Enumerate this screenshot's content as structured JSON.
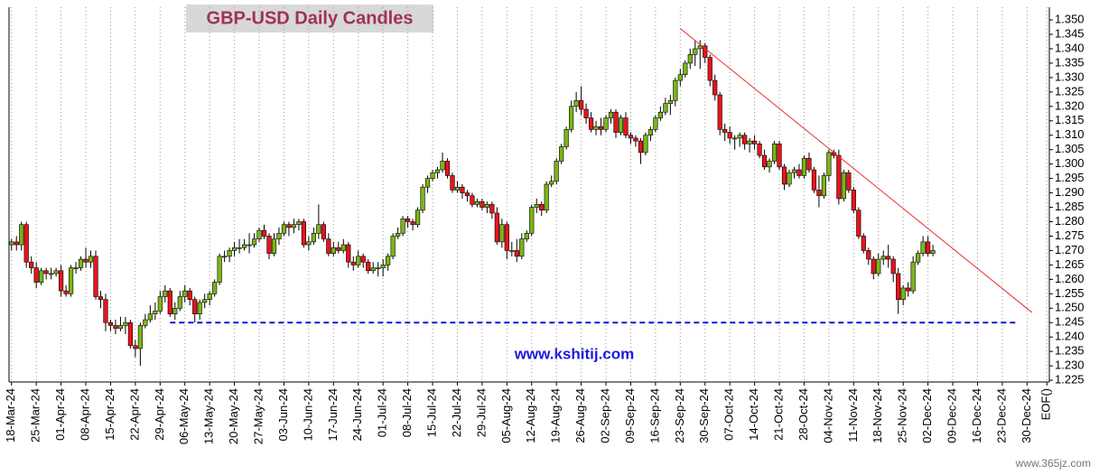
{
  "chart_data": {
    "type": "candlestick",
    "title": "GBP-USD Daily Candles",
    "annotation": "www.kshitij.com",
    "watermark": "www.365jz.com",
    "up_color": "#7cb518",
    "down_color": "#e8141c",
    "grid": "x",
    "ylim": [
      1.2244,
      1.3544
    ],
    "yticks": [
      1.225,
      {
        "value": 1.23,
        "label": "1.230"
      },
      1.235,
      {
        "value": 1.24,
        "label": "1.240"
      },
      1.245,
      {
        "value": 1.25,
        "label": "1.250"
      },
      1.255,
      {
        "value": 1.26,
        "label": "1.260"
      },
      1.265,
      {
        "value": 1.27,
        "label": "1.270"
      },
      1.275,
      {
        "value": 1.28,
        "label": "1.280"
      },
      1.285,
      {
        "value": 1.29,
        "label": "1.290"
      },
      1.295,
      {
        "value": 1.3,
        "label": "1.300"
      },
      1.305,
      {
        "value": 1.31,
        "label": "1.310"
      },
      1.315,
      {
        "value": 1.32,
        "label": "1.320"
      },
      1.325,
      {
        "value": 1.33,
        "label": "1.330"
      },
      1.335,
      {
        "value": 1.34,
        "label": "1.340"
      },
      1.345,
      {
        "value": 1.35,
        "label": "1.350"
      }
    ],
    "categories": [
      "18-Mar-24",
      null,
      null,
      null,
      null,
      "25-Mar-24",
      null,
      null,
      null,
      null,
      "01-Apr-24",
      null,
      null,
      null,
      null,
      "08-Apr-24",
      null,
      null,
      null,
      null,
      "15-Apr-24",
      null,
      null,
      null,
      null,
      "22-Apr-24",
      null,
      null,
      null,
      null,
      "29-Apr-24",
      null,
      null,
      null,
      null,
      "06-May-24",
      null,
      null,
      null,
      null,
      "13-May-24",
      null,
      null,
      null,
      null,
      "20-May-24",
      null,
      null,
      null,
      null,
      "27-May-24",
      null,
      null,
      null,
      null,
      "03-Jun-24",
      null,
      null,
      null,
      null,
      "10-Jun-24",
      null,
      null,
      null,
      null,
      "17-Jun-24",
      null,
      null,
      null,
      null,
      "24-Jun-24",
      null,
      null,
      null,
      null,
      "01-Jul-24",
      null,
      null,
      null,
      null,
      "08-Jul-24",
      null,
      null,
      null,
      null,
      "15-Jul-24",
      null,
      null,
      null,
      null,
      "22-Jul-24",
      null,
      null,
      null,
      null,
      "29-Jul-24",
      null,
      null,
      null,
      null,
      "05-Aug-24",
      null,
      null,
      null,
      null,
      "12-Aug-24",
      null,
      null,
      null,
      null,
      "19-Aug-24",
      null,
      null,
      null,
      null,
      "26-Aug-24",
      null,
      null,
      null,
      null,
      "02-Sep-24",
      null,
      null,
      null,
      null,
      "09-Sep-24",
      null,
      null,
      null,
      null,
      "16-Sep-24",
      null,
      null,
      null,
      null,
      "23-Sep-24",
      null,
      null,
      null,
      null,
      "30-Sep-24",
      null,
      null,
      null,
      null,
      "07-Oct-24",
      null,
      null,
      null,
      null,
      "14-Oct-24",
      null,
      null,
      null,
      null,
      "21-Oct-24",
      null,
      null,
      null,
      null,
      "28-Oct-24",
      null,
      null,
      null,
      null,
      "04-Nov-24",
      null,
      null,
      null,
      null,
      "11-Nov-24",
      null,
      null,
      null,
      null,
      "18-Nov-24",
      null,
      null,
      null,
      null,
      "25-Nov-24",
      null,
      null,
      null,
      null,
      "02-Dec-24",
      null,
      null,
      null,
      null,
      "09-Dec-24",
      null,
      null,
      null,
      null,
      "16-Dec-24",
      null,
      null,
      null,
      null,
      "23-Dec-24",
      null,
      null,
      null,
      null,
      "30-Dec-24",
      null,
      null,
      null,
      "EOF()"
    ],
    "candles": [
      [
        1.272,
        1.274,
        1.27,
        1.273
      ],
      [
        1.273,
        1.275,
        1.27,
        1.272
      ],
      [
        1.272,
        1.28,
        1.27,
        1.279
      ],
      [
        1.279,
        1.28,
        1.264,
        1.266
      ],
      [
        1.266,
        1.268,
        1.262,
        1.264
      ],
      [
        1.264,
        1.266,
        1.257,
        1.259
      ],
      [
        1.259,
        1.264,
        1.258,
        1.263
      ],
      [
        1.263,
        1.264,
        1.26,
        1.262
      ],
      [
        1.262,
        1.264,
        1.26,
        1.262
      ],
      [
        1.262,
        1.264,
        1.261,
        1.263
      ],
      [
        1.263,
        1.265,
        1.254,
        1.256
      ],
      [
        1.256,
        1.258,
        1.254,
        1.255
      ],
      [
        1.255,
        1.265,
        1.254,
        1.264
      ],
      [
        1.264,
        1.266,
        1.262,
        1.264
      ],
      [
        1.264,
        1.268,
        1.263,
        1.267
      ],
      [
        1.267,
        1.271,
        1.264,
        1.266
      ],
      [
        1.266,
        1.27,
        1.264,
        1.268
      ],
      [
        1.268,
        1.27,
        1.253,
        1.254
      ],
      [
        1.254,
        1.256,
        1.25,
        1.253
      ],
      [
        1.253,
        1.255,
        1.242,
        1.245
      ],
      [
        1.245,
        1.246,
        1.242,
        1.244
      ],
      [
        1.244,
        1.246,
        1.241,
        1.243
      ],
      [
        1.243,
        1.247,
        1.242,
        1.244
      ],
      [
        1.244,
        1.247,
        1.241,
        1.245
      ],
      [
        1.245,
        1.246,
        1.236,
        1.237
      ],
      [
        1.237,
        1.239,
        1.233,
        1.236
      ],
      [
        1.236,
        1.245,
        1.23,
        1.244
      ],
      [
        1.244,
        1.248,
        1.243,
        1.246
      ],
      [
        1.246,
        1.251,
        1.245,
        1.248
      ],
      [
        1.248,
        1.252,
        1.246,
        1.249
      ],
      [
        1.249,
        1.256,
        1.248,
        1.254
      ],
      [
        1.254,
        1.258,
        1.252,
        1.256
      ],
      [
        1.256,
        1.257,
        1.247,
        1.248
      ],
      [
        1.248,
        1.252,
        1.246,
        1.25
      ],
      [
        1.25,
        1.256,
        1.249,
        1.254
      ],
      [
        1.254,
        1.258,
        1.252,
        1.256
      ],
      [
        1.256,
        1.257,
        1.251,
        1.253
      ],
      [
        1.253,
        1.254,
        1.245,
        1.248
      ],
      [
        1.248,
        1.253,
        1.246,
        1.252
      ],
      [
        1.252,
        1.255,
        1.25,
        1.253
      ],
      [
        1.253,
        1.256,
        1.251,
        1.255
      ],
      [
        1.255,
        1.26,
        1.254,
        1.259
      ],
      [
        1.259,
        1.269,
        1.258,
        1.268
      ],
      [
        1.268,
        1.27,
        1.266,
        1.268
      ],
      [
        1.268,
        1.271,
        1.266,
        1.27
      ],
      [
        1.27,
        1.273,
        1.268,
        1.271
      ],
      [
        1.271,
        1.274,
        1.269,
        1.271
      ],
      [
        1.271,
        1.274,
        1.27,
        1.272
      ],
      [
        1.272,
        1.276,
        1.269,
        1.272
      ],
      [
        1.272,
        1.276,
        1.271,
        1.274
      ],
      [
        1.274,
        1.278,
        1.273,
        1.277
      ],
      [
        1.277,
        1.279,
        1.274,
        1.275
      ],
      [
        1.275,
        1.276,
        1.267,
        1.269
      ],
      [
        1.269,
        1.276,
        1.268,
        1.274
      ],
      [
        1.274,
        1.278,
        1.272,
        1.276
      ],
      [
        1.276,
        1.28,
        1.275,
        1.279
      ],
      [
        1.279,
        1.28,
        1.275,
        1.278
      ],
      [
        1.278,
        1.281,
        1.276,
        1.279
      ],
      [
        1.279,
        1.281,
        1.277,
        1.28
      ],
      [
        1.28,
        1.281,
        1.271,
        1.272
      ],
      [
        1.272,
        1.275,
        1.27,
        1.273
      ],
      [
        1.273,
        1.278,
        1.272,
        1.276
      ],
      [
        1.276,
        1.286,
        1.274,
        1.279
      ],
      [
        1.279,
        1.28,
        1.273,
        1.274
      ],
      [
        1.274,
        1.276,
        1.268,
        1.269
      ],
      [
        1.269,
        1.273,
        1.268,
        1.271
      ],
      [
        1.271,
        1.273,
        1.269,
        1.27
      ],
      [
        1.27,
        1.274,
        1.269,
        1.272
      ],
      [
        1.272,
        1.273,
        1.264,
        1.266
      ],
      [
        1.266,
        1.268,
        1.263,
        1.265
      ],
      [
        1.265,
        1.27,
        1.264,
        1.268
      ],
      [
        1.268,
        1.269,
        1.264,
        1.266
      ],
      [
        1.266,
        1.267,
        1.262,
        1.263
      ],
      [
        1.263,
        1.266,
        1.262,
        1.264
      ],
      [
        1.264,
        1.266,
        1.261,
        1.264
      ],
      [
        1.264,
        1.267,
        1.261,
        1.265
      ],
      [
        1.265,
        1.269,
        1.263,
        1.268
      ],
      [
        1.268,
        1.276,
        1.267,
        1.275
      ],
      [
        1.275,
        1.278,
        1.274,
        1.276
      ],
      [
        1.276,
        1.282,
        1.275,
        1.281
      ],
      [
        1.281,
        1.282,
        1.278,
        1.28
      ],
      [
        1.28,
        1.281,
        1.277,
        1.279
      ],
      [
        1.279,
        1.285,
        1.278,
        1.284
      ],
      [
        1.284,
        1.293,
        1.283,
        1.292
      ],
      [
        1.292,
        1.296,
        1.29,
        1.295
      ],
      [
        1.295,
        1.298,
        1.294,
        1.297
      ],
      [
        1.297,
        1.299,
        1.295,
        1.298
      ],
      [
        1.298,
        1.304,
        1.297,
        1.301
      ],
      [
        1.301,
        1.302,
        1.295,
        1.296
      ],
      [
        1.296,
        1.297,
        1.29,
        1.291
      ],
      [
        1.291,
        1.294,
        1.29,
        1.292
      ],
      [
        1.292,
        1.293,
        1.288,
        1.29
      ],
      [
        1.29,
        1.291,
        1.287,
        1.289
      ],
      [
        1.289,
        1.29,
        1.285,
        1.286
      ],
      [
        1.286,
        1.288,
        1.285,
        1.287
      ],
      [
        1.287,
        1.288,
        1.284,
        1.285
      ],
      [
        1.285,
        1.287,
        1.283,
        1.286
      ],
      [
        1.286,
        1.287,
        1.281,
        1.283
      ],
      [
        1.283,
        1.285,
        1.272,
        1.273
      ],
      [
        1.273,
        1.281,
        1.271,
        1.279
      ],
      [
        1.279,
        1.28,
        1.267,
        1.27
      ],
      [
        1.27,
        1.273,
        1.268,
        1.27
      ],
      [
        1.27,
        1.274,
        1.266,
        1.268
      ],
      [
        1.268,
        1.276,
        1.267,
        1.274
      ],
      [
        1.274,
        1.277,
        1.273,
        1.276
      ],
      [
        1.276,
        1.286,
        1.275,
        1.285
      ],
      [
        1.285,
        1.288,
        1.283,
        1.286
      ],
      [
        1.286,
        1.287,
        1.282,
        1.284
      ],
      [
        1.284,
        1.294,
        1.283,
        1.293
      ],
      [
        1.293,
        1.296,
        1.292,
        1.294
      ],
      [
        1.294,
        1.302,
        1.293,
        1.301
      ],
      [
        1.301,
        1.307,
        1.3,
        1.306
      ],
      [
        1.306,
        1.313,
        1.305,
        1.312
      ],
      [
        1.312,
        1.322,
        1.311,
        1.32
      ],
      [
        1.32,
        1.325,
        1.318,
        1.322
      ],
      [
        1.322,
        1.327,
        1.317,
        1.319
      ],
      [
        1.319,
        1.321,
        1.314,
        1.316
      ],
      [
        1.316,
        1.318,
        1.311,
        1.312
      ],
      [
        1.312,
        1.315,
        1.31,
        1.313
      ],
      [
        1.313,
        1.316,
        1.31,
        1.312
      ],
      [
        1.312,
        1.317,
        1.311,
        1.316
      ],
      [
        1.316,
        1.319,
        1.314,
        1.318
      ],
      [
        1.318,
        1.319,
        1.309,
        1.311
      ],
      [
        1.311,
        1.317,
        1.31,
        1.316
      ],
      [
        1.316,
        1.318,
        1.309,
        1.31
      ],
      [
        1.31,
        1.311,
        1.307,
        1.309
      ],
      [
        1.309,
        1.31,
        1.306,
        1.308
      ],
      [
        1.308,
        1.309,
        1.3,
        1.304
      ],
      [
        1.304,
        1.311,
        1.303,
        1.31
      ],
      [
        1.31,
        1.313,
        1.308,
        1.312
      ],
      [
        1.312,
        1.317,
        1.311,
        1.316
      ],
      [
        1.316,
        1.32,
        1.315,
        1.318
      ],
      [
        1.318,
        1.323,
        1.317,
        1.321
      ],
      [
        1.321,
        1.324,
        1.317,
        1.322
      ],
      [
        1.322,
        1.33,
        1.32,
        1.329
      ],
      [
        1.329,
        1.333,
        1.327,
        1.331
      ],
      [
        1.331,
        1.336,
        1.33,
        1.335
      ],
      [
        1.335,
        1.34,
        1.333,
        1.338
      ],
      [
        1.338,
        1.343,
        1.334,
        1.34
      ],
      [
        1.34,
        1.343,
        1.333,
        1.341
      ],
      [
        1.341,
        1.342,
        1.335,
        1.337
      ],
      [
        1.337,
        1.338,
        1.327,
        1.329
      ],
      [
        1.329,
        1.331,
        1.322,
        1.324
      ],
      [
        1.324,
        1.325,
        1.31,
        1.312
      ],
      [
        1.312,
        1.314,
        1.308,
        1.311
      ],
      [
        1.311,
        1.313,
        1.307,
        1.309
      ],
      [
        1.309,
        1.31,
        1.305,
        1.309
      ],
      [
        1.309,
        1.311,
        1.306,
        1.31
      ],
      [
        1.31,
        1.311,
        1.305,
        1.307
      ],
      [
        1.307,
        1.309,
        1.304,
        1.308
      ],
      [
        1.308,
        1.31,
        1.305,
        1.307
      ],
      [
        1.307,
        1.308,
        1.302,
        1.303
      ],
      [
        1.303,
        1.305,
        1.298,
        1.299
      ],
      [
        1.299,
        1.302,
        1.297,
        1.301
      ],
      [
        1.301,
        1.308,
        1.3,
        1.307
      ],
      [
        1.307,
        1.308,
        1.298,
        1.299
      ],
      [
        1.299,
        1.3,
        1.291,
        1.293
      ],
      [
        1.293,
        1.298,
        1.292,
        1.297
      ],
      [
        1.297,
        1.299,
        1.295,
        1.298
      ],
      [
        1.298,
        1.3,
        1.295,
        1.296
      ],
      [
        1.296,
        1.303,
        1.295,
        1.302
      ],
      [
        1.302,
        1.304,
        1.297,
        1.298
      ],
      [
        1.298,
        1.299,
        1.29,
        1.291
      ],
      [
        1.291,
        1.296,
        1.285,
        1.289
      ],
      [
        1.289,
        1.297,
        1.288,
        1.296
      ],
      [
        1.296,
        1.305,
        1.294,
        1.304
      ],
      [
        1.304,
        1.305,
        1.302,
        1.303
      ],
      [
        1.303,
        1.305,
        1.286,
        1.288
      ],
      [
        1.288,
        1.298,
        1.287,
        1.297
      ],
      [
        1.297,
        1.298,
        1.29,
        1.291
      ],
      [
        1.291,
        1.292,
        1.283,
        1.284
      ],
      [
        1.284,
        1.285,
        1.274,
        1.275
      ],
      [
        1.275,
        1.276,
        1.269,
        1.27
      ],
      [
        1.27,
        1.271,
        1.265,
        1.267
      ],
      [
        1.267,
        1.268,
        1.26,
        1.262
      ],
      [
        1.262,
        1.269,
        1.261,
        1.267
      ],
      [
        1.267,
        1.27,
        1.265,
        1.268
      ],
      [
        1.268,
        1.272,
        1.264,
        1.267
      ],
      [
        1.267,
        1.268,
        1.259,
        1.262
      ],
      [
        1.262,
        1.264,
        1.248,
        1.253
      ],
      [
        1.253,
        1.258,
        1.251,
        1.257
      ],
      [
        1.257,
        1.259,
        1.254,
        1.256
      ],
      [
        1.256,
        1.268,
        1.255,
        1.266
      ],
      [
        1.266,
        1.27,
        1.265,
        1.269
      ],
      [
        1.269,
        1.275,
        1.268,
        1.273
      ],
      [
        1.273,
        1.275,
        1.268,
        1.269
      ],
      [
        1.269,
        1.272,
        1.268,
        1.27
      ],
      null,
      null,
      null,
      null,
      null,
      null,
      null,
      null,
      null,
      null,
      null,
      null,
      null,
      null,
      null,
      null,
      null,
      null,
      null,
      null,
      null,
      null,
      null
    ],
    "lines": [
      {
        "color": "#1414d8",
        "dashed": true,
        "x": [
          32,
          203
        ],
        "y": [
          1.245,
          1.245
        ]
      },
      {
        "color": "#e83030",
        "dashed": false,
        "x": [
          135,
          206
        ],
        "y": [
          1.347,
          1.2485
        ]
      }
    ]
  }
}
